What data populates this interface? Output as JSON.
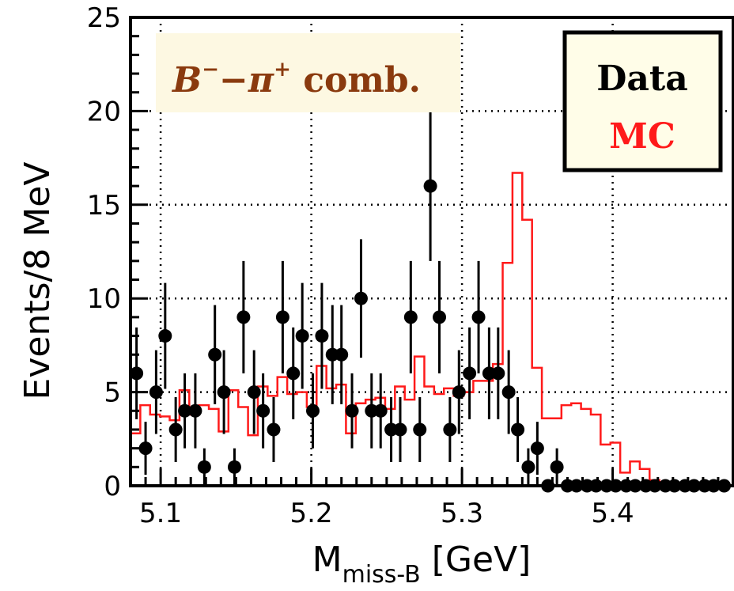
{
  "chart_data": {
    "type": "scatter",
    "xlabel_main": "M",
    "xlabel_sub": "miss-B",
    "xlabel_unit": "[GeV]",
    "ylabel": "Events/8 MeV",
    "xlim": [
      5.08,
      5.48
    ],
    "ylim": [
      0,
      25
    ],
    "xticks": [
      5.1,
      5.2,
      5.3,
      5.4
    ],
    "xtick_labels": [
      "5.1",
      "5.2",
      "5.3",
      "5.4"
    ],
    "yticks": [
      0,
      5,
      10,
      15,
      20,
      25
    ],
    "ytick_labels": [
      "0",
      "5",
      "10",
      "15",
      "20",
      "25"
    ],
    "grid": true,
    "annotation": {
      "B": "B",
      "B_sup": "−",
      "dash": "−",
      "pi": "π",
      "pi_sup": "+",
      "rest": " comb."
    },
    "legend": {
      "position": "top-right",
      "data_label": "Data",
      "mc_label": "MC"
    },
    "colors": {
      "data": "#000000",
      "mc": "#ff1a1a",
      "annotation_bg": "#fdf8e2",
      "annotation_text": "#8a3a0e",
      "legend_bg": "#fffde8"
    },
    "series": [
      {
        "name": "Data",
        "kind": "points_with_errors",
        "x": [
          5.084,
          5.09,
          5.097,
          5.103,
          5.11,
          5.116,
          5.123,
          5.129,
          5.136,
          5.142,
          5.149,
          5.155,
          5.162,
          5.168,
          5.175,
          5.181,
          5.188,
          5.194,
          5.201,
          5.207,
          5.214,
          5.22,
          5.227,
          5.233,
          5.24,
          5.246,
          5.253,
          5.259,
          5.266,
          5.272,
          5.279,
          5.285,
          5.292,
          5.298,
          5.305,
          5.311,
          5.318,
          5.324,
          5.331,
          5.337,
          5.344,
          5.35,
          5.357,
          5.363,
          5.37,
          5.376,
          5.383,
          5.389,
          5.396,
          5.402,
          5.409,
          5.415,
          5.422,
          5.428,
          5.435,
          5.441,
          5.448,
          5.454,
          5.461,
          5.467,
          5.474
        ],
        "y": [
          6,
          2,
          5,
          8,
          3,
          4,
          4,
          1,
          7,
          5,
          1,
          9,
          5,
          4,
          3,
          9,
          6,
          8,
          4,
          8,
          7,
          7,
          4,
          10,
          4,
          4,
          3,
          3,
          9,
          3,
          16,
          9,
          3,
          5,
          6,
          9,
          6,
          6,
          5,
          3,
          1,
          2,
          0,
          1,
          0,
          0,
          0,
          0,
          0,
          0,
          0,
          0,
          0,
          0,
          0,
          0,
          0,
          0,
          0,
          0,
          0
        ]
      },
      {
        "name": "MC",
        "kind": "step_histogram",
        "bin_width": 0.0065,
        "x_start": 5.08,
        "y": [
          2.8,
          4.3,
          3.8,
          3.7,
          3.5,
          5.1,
          3.8,
          4.3,
          4.1,
          2.9,
          5.1,
          4.2,
          2.7,
          5.3,
          4.8,
          5.8,
          4.9,
          5.0,
          4.2,
          6.4,
          5.2,
          5.4,
          2.8,
          4.4,
          4.6,
          4.7,
          4.1,
          5.3,
          4.6,
          6.9,
          5.3,
          4.9,
          5.2,
          4.8,
          5.0,
          5.6,
          5.6,
          6.5,
          11.9,
          16.7,
          14.2,
          6.3,
          3.6,
          3.6,
          4.3,
          4.4,
          4.1,
          3.8,
          2.2,
          2.3,
          0.7,
          1.3,
          0.9,
          0.3,
          0.2,
          0.1,
          0.05,
          0.0,
          0.0,
          0.0,
          0.0,
          0.0
        ]
      }
    ]
  }
}
